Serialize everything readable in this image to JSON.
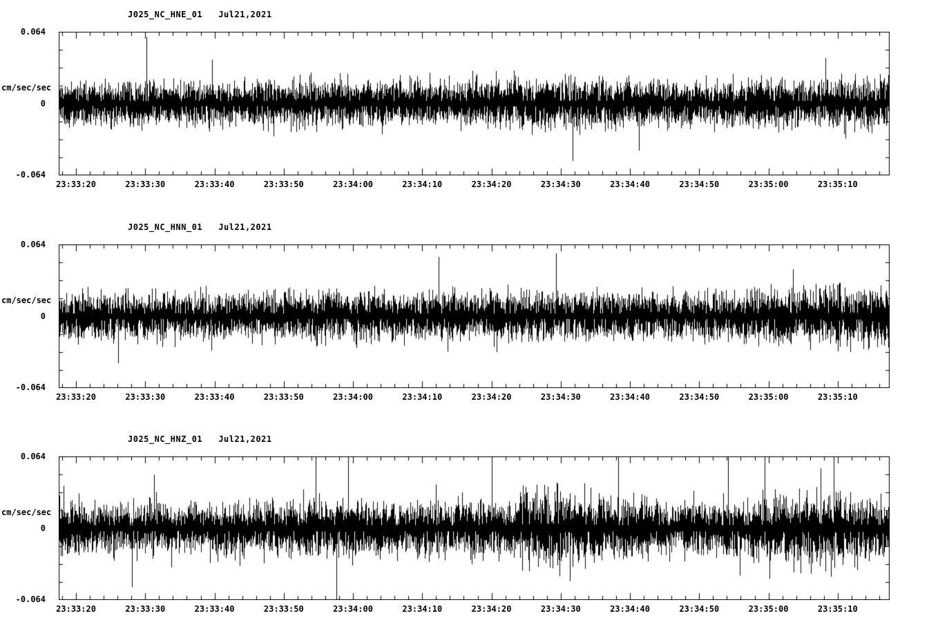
{
  "page": {
    "background": "#ffffff",
    "text_color": "#000000"
  },
  "chart_data": [
    {
      "type": "line",
      "title": "J025_NC_HNE_01   Jul21,2021",
      "station": "J025",
      "network": "NC",
      "channel": "HNE",
      "location": "01",
      "date": "Jul21,2021",
      "ylabel": "cm/sec/sec",
      "ylim": [
        -0.064,
        0.064
      ],
      "y_tick_labels": [
        "0.064",
        "0",
        "-0.064"
      ],
      "y_tick_values": [
        0.064,
        0,
        -0.064
      ],
      "x_tick_labels": [
        "23:33:20",
        "23:33:30",
        "23:33:40",
        "23:33:50",
        "23:34:00",
        "23:34:10",
        "23:34:20",
        "23:34:30",
        "23:34:40",
        "23:34:50",
        "23:35:00",
        "23:35:10"
      ],
      "duration_seconds": 120,
      "first_tick_offset_seconds": 2.5,
      "major_tick_interval_seconds": 10,
      "minor_tick_interval_seconds": 2,
      "minor_tick_offset_seconds": 0.5,
      "trace_color": "#000000",
      "grid": false,
      "legend": false,
      "noise_seed": 2021,
      "envelope_interval_seconds": 5,
      "amplitude_envelope": [
        0.009,
        0.0092,
        0.009,
        0.0088,
        0.009,
        0.0092,
        0.009,
        0.0095,
        0.0098,
        0.0095,
        0.0092,
        0.0095,
        0.01,
        0.0102,
        0.0105,
        0.01,
        0.0098,
        0.01,
        0.0095,
        0.0092,
        0.0095,
        0.0098,
        0.0092,
        0.0105,
        0.01
      ],
      "spike_probability": 0.004,
      "spike_scale": 2.0,
      "spike_negative_bias": 0.55
    },
    {
      "type": "line",
      "title": "J025_NC_HNN_01   Jul21,2021",
      "station": "J025",
      "network": "NC",
      "channel": "HNN",
      "location": "01",
      "date": "Jul21,2021",
      "ylabel": "cm/sec/sec",
      "ylim": [
        -0.064,
        0.064
      ],
      "y_tick_labels": [
        "0.064",
        "0",
        "-0.064"
      ],
      "y_tick_values": [
        0.064,
        0,
        -0.064
      ],
      "x_tick_labels": [
        "23:33:20",
        "23:33:30",
        "23:33:40",
        "23:33:50",
        "23:34:00",
        "23:34:10",
        "23:34:20",
        "23:34:30",
        "23:34:40",
        "23:34:50",
        "23:35:00",
        "23:35:10"
      ],
      "duration_seconds": 120,
      "first_tick_offset_seconds": 2.5,
      "major_tick_interval_seconds": 10,
      "minor_tick_interval_seconds": 2,
      "minor_tick_offset_seconds": 0.5,
      "trace_color": "#000000",
      "grid": false,
      "legend": false,
      "noise_seed": 2022,
      "envelope_interval_seconds": 5,
      "amplitude_envelope": [
        0.0095,
        0.0098,
        0.0095,
        0.0098,
        0.0095,
        0.0092,
        0.0095,
        0.0098,
        0.01,
        0.0098,
        0.0095,
        0.0098,
        0.01,
        0.0102,
        0.0098,
        0.01,
        0.0098,
        0.0095,
        0.0098,
        0.01,
        0.0102,
        0.0108,
        0.0115,
        0.012,
        0.0115
      ],
      "spike_probability": 0.004,
      "spike_scale": 2.4,
      "spike_negative_bias": 0.7
    },
    {
      "type": "line",
      "title": "J025_NC_HNZ_01   Jul21,2021",
      "station": "J025",
      "network": "NC",
      "channel": "HNZ",
      "location": "01",
      "date": "Jul21,2021",
      "ylabel": "cm/sec/sec",
      "ylim": [
        -0.064,
        0.064
      ],
      "y_tick_labels": [
        "0.064",
        "0",
        "-0.064"
      ],
      "y_tick_values": [
        0.064,
        0,
        -0.064
      ],
      "x_tick_labels": [
        "23:33:20",
        "23:33:30",
        "23:33:40",
        "23:33:50",
        "23:34:00",
        "23:34:10",
        "23:34:20",
        "23:34:30",
        "23:34:40",
        "23:34:50",
        "23:35:00",
        "23:35:10"
      ],
      "duration_seconds": 120,
      "first_tick_offset_seconds": 2.5,
      "major_tick_interval_seconds": 10,
      "minor_tick_interval_seconds": 2,
      "minor_tick_offset_seconds": 0.5,
      "trace_color": "#000000",
      "grid": false,
      "legend": false,
      "noise_seed": 2023,
      "envelope_interval_seconds": 5,
      "amplitude_envelope": [
        0.0105,
        0.011,
        0.0105,
        0.01,
        0.0105,
        0.011,
        0.0105,
        0.011,
        0.0115,
        0.011,
        0.0108,
        0.0112,
        0.011,
        0.0118,
        0.0165,
        0.0135,
        0.0115,
        0.0112,
        0.011,
        0.0112,
        0.0115,
        0.0135,
        0.014,
        0.013,
        0.012
      ],
      "spike_probability": 0.008,
      "spike_scale": 2.6,
      "spike_negative_bias": 0.5
    }
  ]
}
